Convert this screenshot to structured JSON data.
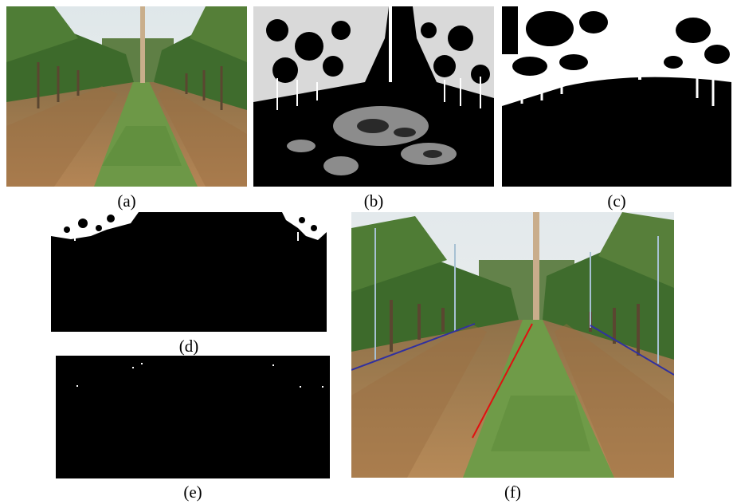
{
  "figure": {
    "panels": [
      {
        "id": "a",
        "caption": "(a)"
      },
      {
        "id": "b",
        "caption": "(b)"
      },
      {
        "id": "c",
        "caption": "(c)"
      },
      {
        "id": "d",
        "caption": "(d)"
      },
      {
        "id": "e",
        "caption": "(e)"
      },
      {
        "id": "f",
        "caption": "(f)"
      }
    ]
  },
  "colors": {
    "sky": "#e9eef0",
    "soil": "#a87b4c",
    "grass": "#6f9a48",
    "foliage": "#3f6a2c",
    "trunk": "#c8ad8a",
    "guide_line": "#e01010",
    "row_line": "#3030a0",
    "mask_white": "#ffffff",
    "mask_black": "#000000"
  }
}
